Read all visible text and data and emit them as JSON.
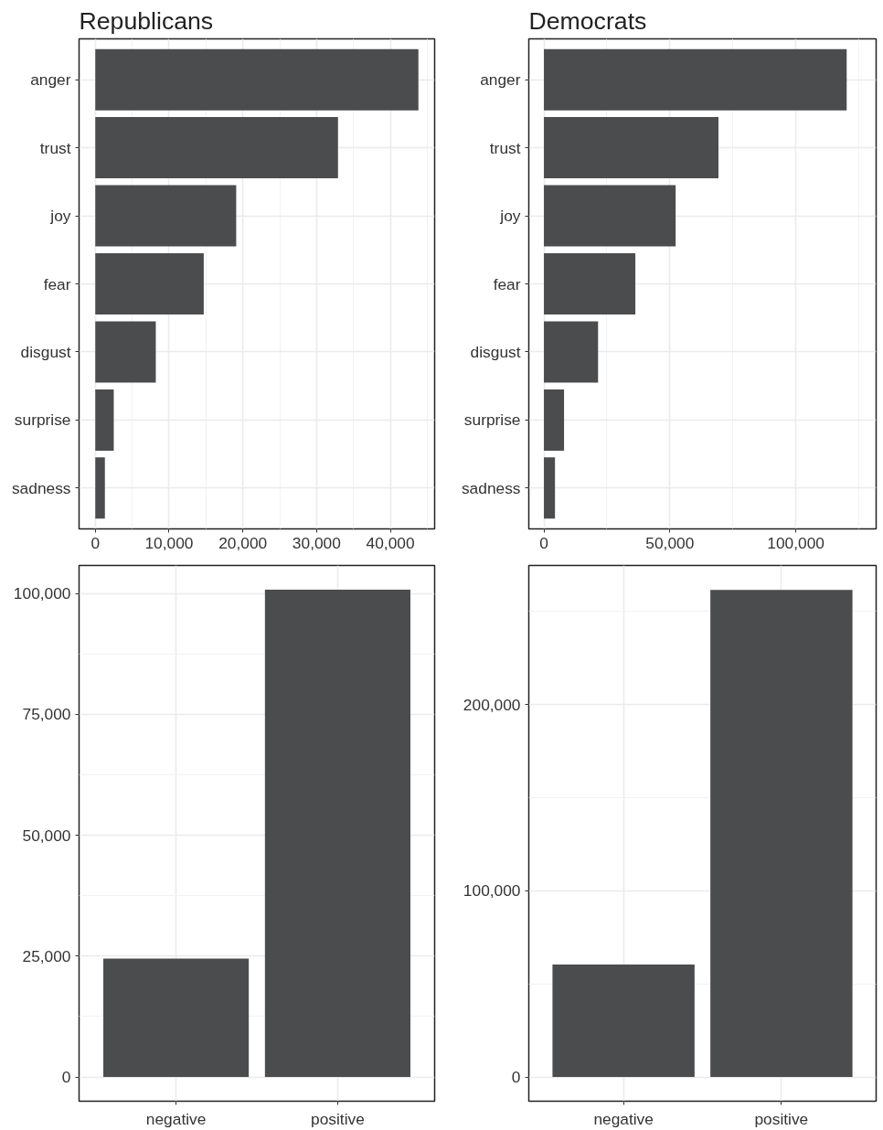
{
  "chart_data": [
    {
      "type": "bar",
      "orientation": "horizontal",
      "title": "Republicans",
      "grid": true,
      "color": "#4b4c4e",
      "categories": [
        "anger",
        "trust",
        "joy",
        "fear",
        "disgust",
        "surprise",
        "sadness"
      ],
      "values": [
        43800,
        32900,
        19100,
        14700,
        8200,
        2500,
        1300
      ],
      "xlim": [
        -2200,
        46000
      ],
      "xticks": [
        0,
        {
          "value": 10000,
          "label": "10,000"
        },
        {
          "value": 20000,
          "label": "20,000"
        },
        {
          "value": 30000,
          "label": "30,000"
        },
        {
          "value": 40000,
          "label": "40,000"
        }
      ]
    },
    {
      "type": "bar",
      "orientation": "horizontal",
      "title": "Democrats",
      "grid": true,
      "color": "#4b4c4e",
      "categories": [
        "anger",
        "trust",
        "joy",
        "fear",
        "disgust",
        "surprise",
        "sadness"
      ],
      "values": [
        120200,
        69300,
        52300,
        36300,
        21500,
        8000,
        4400
      ],
      "xlim": [
        -6000,
        131900
      ],
      "xticks": [
        0,
        {
          "value": 50000,
          "label": "50,000"
        },
        {
          "value": 100000,
          "label": "100,000"
        }
      ]
    },
    {
      "type": "bar",
      "grid": true,
      "color": "#4b4c4e",
      "categories": [
        "negative",
        "positive"
      ],
      "values": [
        24500,
        100800
      ],
      "ylim": [
        -5000,
        105800
      ],
      "yticks": [
        0,
        {
          "value": 25000,
          "label": "25,000"
        },
        {
          "value": 50000,
          "label": "50,000"
        },
        {
          "value": 75000,
          "label": "75,000"
        },
        {
          "value": 100000,
          "label": "100,000"
        }
      ]
    },
    {
      "type": "bar",
      "grid": true,
      "color": "#4b4c4e",
      "categories": [
        "negative",
        "positive"
      ],
      "values": [
        60400,
        261500
      ],
      "ylim": [
        -13000,
        274600
      ],
      "yticks": [
        0,
        {
          "value": 100000,
          "label": "100,000"
        },
        {
          "value": 200000,
          "label": "200,000"
        }
      ]
    }
  ]
}
